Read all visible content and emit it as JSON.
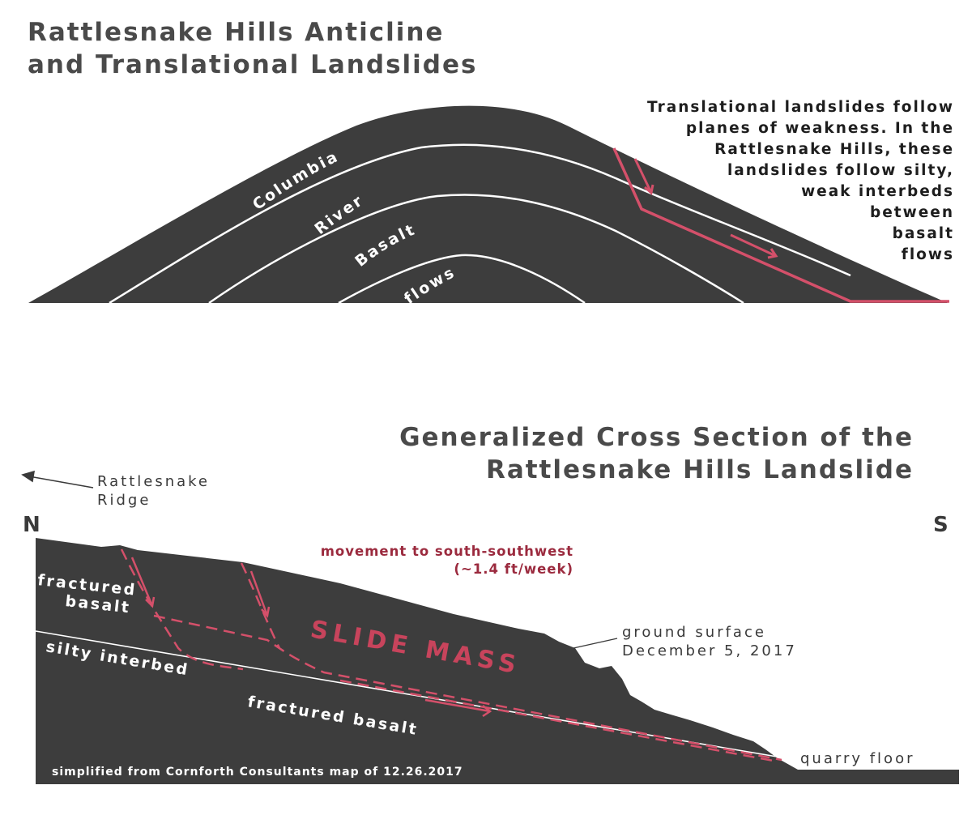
{
  "top_panel": {
    "title_line1": "Rattlesnake Hills Anticline",
    "title_line2": "and Translational Landslides",
    "layer_labels": [
      "Columbia",
      "River",
      "Basalt",
      "flows"
    ],
    "note_lines": [
      "Translational landslides follow",
      "planes of weakness. In the",
      "Rattlesnake Hills, these",
      "landslides follow silty,",
      "weak interbeds",
      "between",
      "basalt",
      "flows"
    ]
  },
  "bottom_panel": {
    "title_line1": "Generalized Cross Section of the",
    "title_line2": "Rattlesnake Hills Landslide",
    "ridge_label_line1": "Rattlesnake",
    "ridge_label_line2": "Ridge",
    "north": "N",
    "south": "S",
    "movement_line1": "movement to south-southwest",
    "movement_line2": "(~1.4 ft/week)",
    "upper_fractured_line1": "fractured",
    "upper_fractured_line2": "basalt",
    "silty_interbed": "silty interbed",
    "slide_mass": "SLIDE MASS",
    "lower_fractured": "fractured basalt",
    "ground_surface_line1": "ground surface",
    "ground_surface_line2": "December 5, 2017",
    "quarry_floor": "quarry floor",
    "credit": "simplified from Cornforth Consultants map of 12.26.2017"
  },
  "colors": {
    "rock": "#3d3d3d",
    "slip_plane": "#d4506a",
    "movement_text": "#9b2a3e",
    "title": "#4a4a4a"
  }
}
